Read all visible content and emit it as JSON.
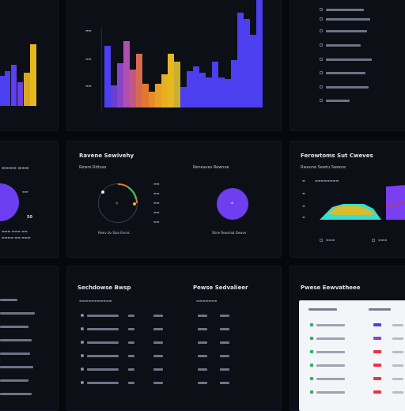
{
  "colors": {
    "background": "#07080d",
    "panel": "#0d0f17",
    "blue": "#4b3ff0",
    "purple": "#7a3ff0",
    "magenta": "#b44fd0",
    "orange": "#e07830",
    "yellow": "#e8b820",
    "teal": "#30e0d0",
    "green": "#20b45c",
    "red": "#ee3344"
  },
  "panels": {
    "mid_left": {
      "title": "Ravene Sewivehy",
      "subtitle": "Rewre Rdtoas",
      "value": "50"
    },
    "mid_center": {
      "subtitle": "Reneaves Rewnoe",
      "footer_left": "Rewv du Slue Eecec",
      "footer_right": "Stine Rewnlad Dewve"
    },
    "mid_right": {
      "title": "Ferowtoms Sut Cweves",
      "subtitle": "Rweune Sewtu Sweore"
    },
    "bottom_center": {
      "title": "Sechdowse Bwsp",
      "subtitle": "Pewse Sedvalieer"
    },
    "bottom_right": {
      "title": "Pwese Eewvatheee"
    }
  },
  "icons": {
    "lock": "lock-icon",
    "donut_center": "water-drop-icon"
  }
}
